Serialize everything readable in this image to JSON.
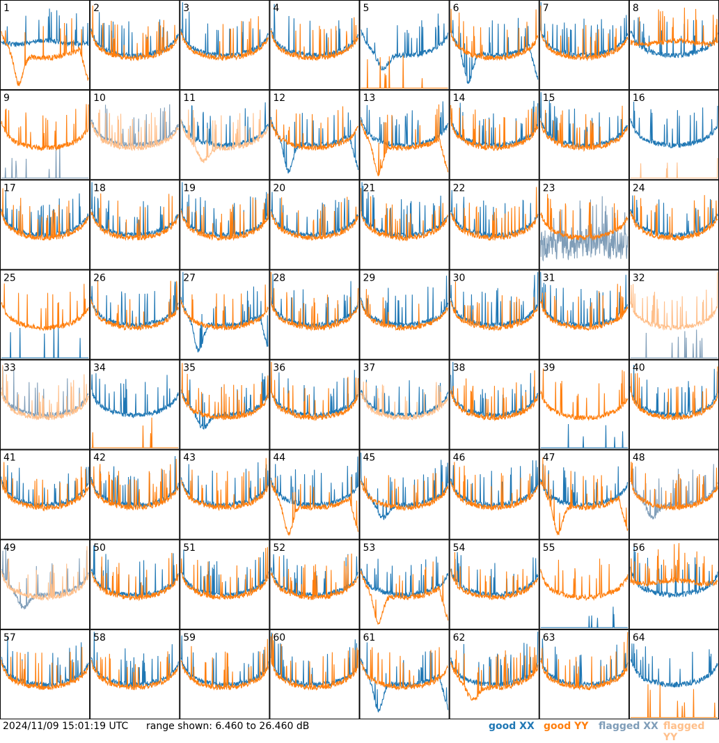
{
  "footer": {
    "timestamp": "2024/11/09 15:01:19 UTC",
    "range_text": "range shown: 6.460 to 26.460 dB",
    "legend": {
      "good_xx": "good XX",
      "good_yy": "good YY",
      "flagged_xx": "flagged XX",
      "flagged_yy": "flagged YY"
    }
  },
  "colors": {
    "good_xx": "#1f77b4",
    "good_yy": "#ff7f0e",
    "flagged_xx": "#7f9db8",
    "flagged_yy": "#ffbf8a"
  },
  "chart_data": {
    "type": "line",
    "y_unit": "dB",
    "ylim": [
      6.46,
      26.46
    ],
    "grid": "8x8 panels",
    "panels": [
      {
        "id": "1",
        "xx": "good",
        "yy": "good",
        "xx_shape": "flat",
        "yy_shape": "dip_drop"
      },
      {
        "id": "2",
        "xx": "good",
        "yy": "good",
        "xx_shape": "normal",
        "yy_shape": "normal"
      },
      {
        "id": "3",
        "xx": "good",
        "yy": "good",
        "xx_shape": "normal",
        "yy_shape": "normal"
      },
      {
        "id": "4",
        "xx": "good",
        "yy": "good",
        "xx_shape": "normal",
        "yy_shape": "normal"
      },
      {
        "id": "5",
        "xx": "good",
        "yy": "good",
        "xx_shape": "dip",
        "yy_shape": "dead"
      },
      {
        "id": "6",
        "xx": "good",
        "yy": "good",
        "xx_shape": "dip_drop",
        "yy_shape": "normal"
      },
      {
        "id": "7",
        "xx": "good",
        "yy": "good",
        "xx_shape": "normal",
        "yy_shape": "normal"
      },
      {
        "id": "8",
        "xx": "good",
        "yy": "good",
        "xx_shape": "normal",
        "yy_shape": "flat"
      },
      {
        "id": "9",
        "xx": "flagged",
        "yy": "good",
        "xx_shape": "dead",
        "yy_shape": "normal"
      },
      {
        "id": "10",
        "xx": "flagged",
        "yy": "flagged",
        "xx_shape": "normal",
        "yy_shape": "normal"
      },
      {
        "id": "11",
        "xx": "good",
        "yy": "flagged",
        "xx_shape": "normal",
        "yy_shape": "dip"
      },
      {
        "id": "12",
        "xx": "good",
        "yy": "good",
        "xx_shape": "dip_drop",
        "yy_shape": "normal"
      },
      {
        "id": "13",
        "xx": "good",
        "yy": "good",
        "xx_shape": "normal",
        "yy_shape": "dip_drop"
      },
      {
        "id": "14",
        "xx": "good",
        "yy": "good",
        "xx_shape": "normal",
        "yy_shape": "normal"
      },
      {
        "id": "15",
        "xx": "good",
        "yy": "good",
        "xx_shape": "normal",
        "yy_shape": "normal"
      },
      {
        "id": "16",
        "xx": "good",
        "yy": "flagged",
        "xx_shape": "normal",
        "yy_shape": "dead"
      },
      {
        "id": "17",
        "xx": "good",
        "yy": "good",
        "xx_shape": "normal",
        "yy_shape": "normal"
      },
      {
        "id": "18",
        "xx": "good",
        "yy": "good",
        "xx_shape": "normal",
        "yy_shape": "normal"
      },
      {
        "id": "19",
        "xx": "good",
        "yy": "good",
        "xx_shape": "normal",
        "yy_shape": "normal"
      },
      {
        "id": "20",
        "xx": "good",
        "yy": "good",
        "xx_shape": "normal",
        "yy_shape": "normal"
      },
      {
        "id": "21",
        "xx": "good",
        "yy": "good",
        "xx_shape": "normal",
        "yy_shape": "normal"
      },
      {
        "id": "22",
        "xx": "good",
        "yy": "good",
        "xx_shape": "normal",
        "yy_shape": "normal"
      },
      {
        "id": "23",
        "xx": "flagged",
        "yy": "good",
        "xx_shape": "noisy",
        "yy_shape": "normal"
      },
      {
        "id": "24",
        "xx": "good",
        "yy": "good",
        "xx_shape": "normal",
        "yy_shape": "normal"
      },
      {
        "id": "25",
        "xx": "good",
        "yy": "good",
        "xx_shape": "dead",
        "yy_shape": "normal"
      },
      {
        "id": "26",
        "xx": "good",
        "yy": "good",
        "xx_shape": "normal",
        "yy_shape": "normal"
      },
      {
        "id": "27",
        "xx": "good",
        "yy": "good",
        "xx_shape": "dip_drop",
        "yy_shape": "normal"
      },
      {
        "id": "28",
        "xx": "good",
        "yy": "good",
        "xx_shape": "normal",
        "yy_shape": "normal"
      },
      {
        "id": "29",
        "xx": "good",
        "yy": "good",
        "xx_shape": "normal",
        "yy_shape": "normal"
      },
      {
        "id": "30",
        "xx": "good",
        "yy": "good",
        "xx_shape": "normal",
        "yy_shape": "normal"
      },
      {
        "id": "31",
        "xx": "good",
        "yy": "good",
        "xx_shape": "normal",
        "yy_shape": "normal"
      },
      {
        "id": "32",
        "xx": "flagged",
        "yy": "flagged",
        "xx_shape": "dead",
        "yy_shape": "normal"
      },
      {
        "id": "33",
        "xx": "flagged",
        "yy": "flagged",
        "xx_shape": "normal",
        "yy_shape": "normal"
      },
      {
        "id": "34",
        "xx": "good",
        "yy": "good",
        "xx_shape": "normal",
        "yy_shape": "dead"
      },
      {
        "id": "35",
        "xx": "good",
        "yy": "good",
        "xx_shape": "dip",
        "yy_shape": "normal"
      },
      {
        "id": "36",
        "xx": "good",
        "yy": "good",
        "xx_shape": "normal",
        "yy_shape": "normal"
      },
      {
        "id": "37",
        "xx": "good",
        "yy": "flagged",
        "xx_shape": "normal",
        "yy_shape": "normal"
      },
      {
        "id": "38",
        "xx": "good",
        "yy": "good",
        "xx_shape": "normal",
        "yy_shape": "normal"
      },
      {
        "id": "39",
        "xx": "good",
        "yy": "good",
        "xx_shape": "dead",
        "yy_shape": "normal"
      },
      {
        "id": "40",
        "xx": "good",
        "yy": "good",
        "xx_shape": "normal",
        "yy_shape": "normal"
      },
      {
        "id": "41",
        "xx": "good",
        "yy": "good",
        "xx_shape": "normal",
        "yy_shape": "normal"
      },
      {
        "id": "42",
        "xx": "good",
        "yy": "good",
        "xx_shape": "normal",
        "yy_shape": "normal"
      },
      {
        "id": "43",
        "xx": "good",
        "yy": "good",
        "xx_shape": "normal",
        "yy_shape": "normal"
      },
      {
        "id": "44",
        "xx": "good",
        "yy": "good",
        "xx_shape": "normal",
        "yy_shape": "dip_drop"
      },
      {
        "id": "45",
        "xx": "good",
        "yy": "good",
        "xx_shape": "dip",
        "yy_shape": "normal"
      },
      {
        "id": "46",
        "xx": "good",
        "yy": "good",
        "xx_shape": "normal",
        "yy_shape": "normal"
      },
      {
        "id": "47",
        "xx": "good",
        "yy": "good",
        "xx_shape": "normal",
        "yy_shape": "dip_drop"
      },
      {
        "id": "48",
        "xx": "flagged",
        "yy": "good",
        "xx_shape": "dip",
        "yy_shape": "normal"
      },
      {
        "id": "49",
        "xx": "flagged",
        "yy": "flagged",
        "xx_shape": "dip",
        "yy_shape": "normal"
      },
      {
        "id": "50",
        "xx": "good",
        "yy": "good",
        "xx_shape": "normal",
        "yy_shape": "normal"
      },
      {
        "id": "51",
        "xx": "good",
        "yy": "good",
        "xx_shape": "normal",
        "yy_shape": "normal"
      },
      {
        "id": "52",
        "xx": "good",
        "yy": "good",
        "xx_shape": "normal",
        "yy_shape": "normal"
      },
      {
        "id": "53",
        "xx": "good",
        "yy": "good",
        "xx_shape": "normal",
        "yy_shape": "dip_drop"
      },
      {
        "id": "54",
        "xx": "good",
        "yy": "good",
        "xx_shape": "normal",
        "yy_shape": "normal"
      },
      {
        "id": "55",
        "xx": "good",
        "yy": "good",
        "xx_shape": "dead",
        "yy_shape": "normal"
      },
      {
        "id": "56",
        "xx": "good",
        "yy": "good",
        "xx_shape": "normal",
        "yy_shape": "flat"
      },
      {
        "id": "57",
        "xx": "good",
        "yy": "good",
        "xx_shape": "normal",
        "yy_shape": "normal"
      },
      {
        "id": "58",
        "xx": "good",
        "yy": "good",
        "xx_shape": "normal",
        "yy_shape": "normal"
      },
      {
        "id": "59",
        "xx": "good",
        "yy": "good",
        "xx_shape": "normal",
        "yy_shape": "normal"
      },
      {
        "id": "60",
        "xx": "good",
        "yy": "good",
        "xx_shape": "normal",
        "yy_shape": "normal"
      },
      {
        "id": "61",
        "xx": "good",
        "yy": "good",
        "xx_shape": "dip_drop",
        "yy_shape": "normal"
      },
      {
        "id": "62",
        "xx": "good",
        "yy": "good",
        "xx_shape": "normal",
        "yy_shape": "dip"
      },
      {
        "id": "63",
        "xx": "good",
        "yy": "good",
        "xx_shape": "normal",
        "yy_shape": "normal"
      },
      {
        "id": "64",
        "xx": "good",
        "yy": "good",
        "xx_shape": "normal",
        "yy_shape": "dead"
      }
    ]
  }
}
